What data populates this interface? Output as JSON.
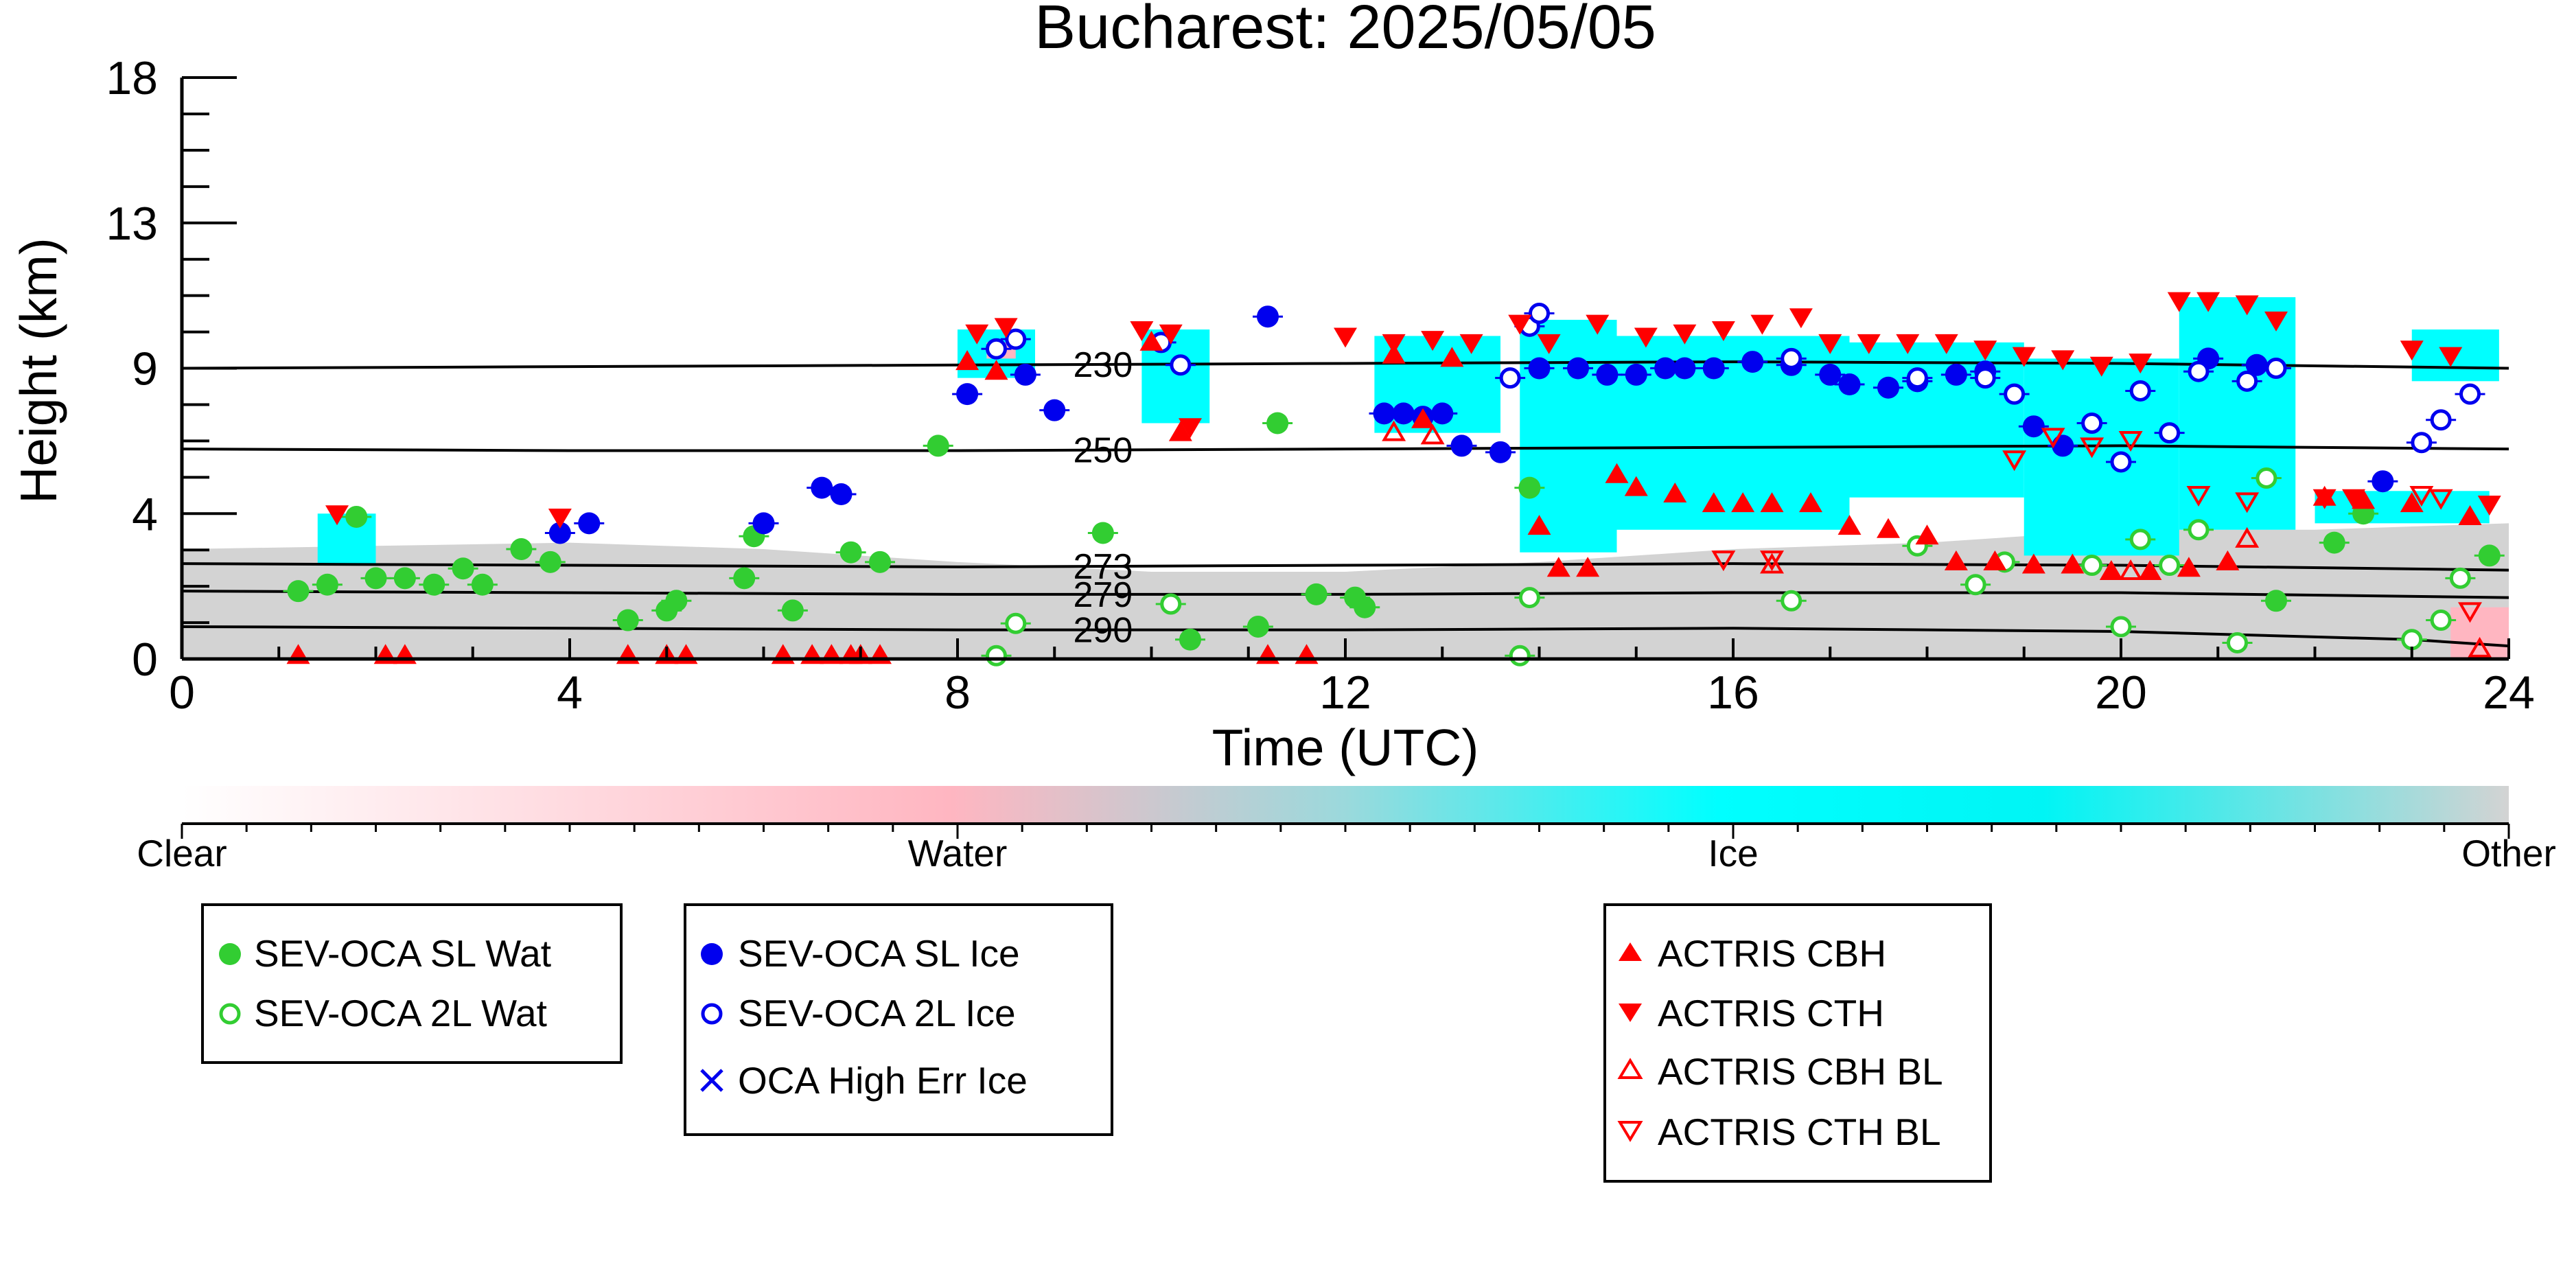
{
  "chart_data": {
    "type": "scatter",
    "title": "Bucharest: 2025/05/05",
    "xlabel": "Time (UTC)",
    "ylabel": "Height (km)",
    "xlim": [
      0,
      24
    ],
    "ylim": [
      0,
      18
    ],
    "x_ticks": [
      "0",
      "4",
      "8",
      "12",
      "16",
      "20",
      "24"
    ],
    "y_ticks": [
      "0",
      "4",
      "9",
      "13",
      "18"
    ],
    "y_tick_values": [
      0,
      4.5,
      9,
      13.5,
      18
    ],
    "colors": {
      "water_sl": "#32CD32",
      "ice_sl": "#0000EE",
      "actris": "#FF0000",
      "clear": "#ffffff",
      "water": "#FFB6C1",
      "ice": "#00FFFF",
      "other": "#D3D3D3"
    },
    "colorbar_labels": [
      "Clear",
      "Water",
      "Ice",
      "Other"
    ],
    "temperature_contours": [
      {
        "label": "230",
        "points": [
          [
            0,
            9.0
          ],
          [
            4,
            9.05
          ],
          [
            8,
            9.1
          ],
          [
            12,
            9.15
          ],
          [
            16,
            9.2
          ],
          [
            20,
            9.15
          ],
          [
            24,
            9.0
          ]
        ]
      },
      {
        "label": "250",
        "points": [
          [
            0,
            6.5
          ],
          [
            4,
            6.45
          ],
          [
            8,
            6.45
          ],
          [
            12,
            6.5
          ],
          [
            16,
            6.55
          ],
          [
            20,
            6.6
          ],
          [
            24,
            6.5
          ]
        ]
      },
      {
        "label": "273",
        "points": [
          [
            0,
            2.95
          ],
          [
            4,
            2.9
          ],
          [
            8,
            2.85
          ],
          [
            12,
            2.9
          ],
          [
            16,
            2.95
          ],
          [
            20,
            2.9
          ],
          [
            24,
            2.75
          ]
        ]
      },
      {
        "label": "279",
        "points": [
          [
            0,
            2.1
          ],
          [
            4,
            2.05
          ],
          [
            8,
            2.0
          ],
          [
            12,
            2.0
          ],
          [
            16,
            2.05
          ],
          [
            20,
            2.05
          ],
          [
            24,
            1.9
          ]
        ]
      },
      {
        "label": "290",
        "points": [
          [
            0,
            1.0
          ],
          [
            4,
            0.95
          ],
          [
            8,
            0.9
          ],
          [
            12,
            0.9
          ],
          [
            16,
            0.95
          ],
          [
            20,
            0.85
          ],
          [
            23,
            0.6
          ],
          [
            24,
            0.4
          ]
        ]
      }
    ],
    "series": [
      {
        "name": "SEV-OCA SL Wat",
        "marker": "filled-circle",
        "color": "#32CD32",
        "x": [
          1.2,
          1.5,
          1.8,
          2.0,
          2.3,
          2.6,
          2.9,
          3.1,
          3.5,
          3.8,
          4.6,
          5.0,
          5.1,
          5.8,
          5.9,
          6.3,
          6.9,
          7.2,
          7.8,
          9.5,
          10.4,
          11.1,
          11.3,
          11.7,
          12.1,
          12.2,
          13.9,
          21.6,
          22.2,
          22.5,
          23.8
        ],
        "y": [
          2.1,
          2.3,
          4.4,
          2.5,
          2.5,
          2.3,
          2.8,
          2.3,
          3.4,
          3.0,
          1.2,
          1.5,
          1.8,
          2.5,
          3.8,
          1.5,
          3.3,
          3.0,
          6.6,
          3.9,
          0.6,
          1.0,
          7.3,
          2.0,
          1.9,
          1.6,
          5.3,
          1.8,
          3.6,
          4.5,
          3.2
        ]
      },
      {
        "name": "SEV-OCA 2L Wat",
        "marker": "open-circle",
        "color": "#32CD32",
        "x": [
          8.4,
          8.6,
          10.2,
          13.8,
          13.9,
          16.6,
          17.9,
          18.5,
          18.8,
          19.7,
          20.0,
          20.2,
          20.5,
          20.8,
          21.2,
          21.5,
          23.0,
          23.3,
          23.5
        ],
        "y": [
          0.1,
          1.1,
          1.7,
          0.1,
          1.9,
          1.8,
          3.5,
          2.3,
          3.0,
          2.9,
          1.0,
          3.7,
          2.9,
          4.0,
          0.5,
          5.6,
          0.6,
          1.2,
          2.5
        ]
      },
      {
        "name": "SEV-OCA SL Ice",
        "marker": "filled-circle",
        "color": "#0000EE",
        "x": [
          3.9,
          4.2,
          6.0,
          6.6,
          6.8,
          8.1,
          8.7,
          9.0,
          11.2,
          12.4,
          12.6,
          12.8,
          13.0,
          13.2,
          13.6,
          14.0,
          14.4,
          14.7,
          15.0,
          15.3,
          15.5,
          15.8,
          16.2,
          16.6,
          17.0,
          17.2,
          17.6,
          17.9,
          18.3,
          18.6,
          19.1,
          19.4,
          20.9,
          21.4,
          22.7
        ],
        "y": [
          3.9,
          4.2,
          4.2,
          5.3,
          5.1,
          8.2,
          8.8,
          7.7,
          10.6,
          7.6,
          7.6,
          7.5,
          7.6,
          6.6,
          6.4,
          9.0,
          9.0,
          8.8,
          8.8,
          9.0,
          9.0,
          9.0,
          9.2,
          9.1,
          8.8,
          8.5,
          8.4,
          8.6,
          8.8,
          8.9,
          7.2,
          6.6,
          9.3,
          9.1,
          5.5
        ]
      },
      {
        "name": "SEV-OCA 2L Ice",
        "marker": "open-circle",
        "color": "#0000EE",
        "x": [
          8.4,
          8.6,
          10.1,
          10.3,
          13.7,
          13.9,
          14.0,
          16.6,
          17.9,
          18.6,
          18.9,
          19.7,
          20.0,
          20.2,
          20.5,
          20.8,
          21.3,
          21.6,
          23.1,
          23.3,
          23.6
        ],
        "y": [
          9.6,
          9.9,
          9.8,
          9.1,
          8.7,
          10.3,
          10.7,
          9.3,
          8.7,
          8.7,
          8.2,
          7.3,
          6.1,
          8.3,
          7.0,
          8.9,
          8.6,
          9.0,
          6.7,
          7.4,
          8.2
        ]
      },
      {
        "name": "OCA High Err Ice",
        "marker": "cross",
        "color": "#0000EE",
        "x": [],
        "y": []
      },
      {
        "name": "ACTRIS CBH",
        "marker": "triangle-up",
        "color": "#FF0000",
        "x": [
          1.2,
          2.1,
          2.3,
          4.6,
          5.0,
          5.2,
          6.2,
          6.5,
          6.7,
          6.9,
          7.0,
          7.2,
          8.1,
          8.4,
          10.0,
          10.3,
          11.2,
          11.6,
          12.5,
          12.8,
          13.1,
          14.0,
          14.2,
          14.5,
          14.8,
          15.0,
          15.4,
          15.8,
          16.1,
          16.4,
          16.8,
          17.2,
          17.6,
          18.0,
          18.3,
          18.7,
          19.1,
          19.5,
          19.9,
          20.3,
          20.7,
          21.1,
          22.1,
          22.5,
          23.0,
          23.6
        ],
        "y": [
          0.1,
          0.1,
          0.1,
          0.1,
          0.1,
          0.1,
          0.1,
          0.1,
          0.1,
          0.1,
          0.1,
          0.1,
          9.2,
          8.9,
          9.8,
          7.0,
          0.1,
          0.1,
          9.4,
          7.4,
          9.3,
          4.1,
          2.8,
          2.8,
          5.7,
          5.3,
          5.1,
          4.8,
          4.8,
          4.8,
          4.8,
          4.1,
          4.0,
          3.8,
          3.0,
          3.0,
          2.9,
          2.9,
          2.7,
          2.7,
          2.8,
          3.0,
          5.0,
          4.9,
          4.8,
          4.4
        ]
      },
      {
        "name": "ACTRIS CTH",
        "marker": "triangle-down",
        "color": "#FF0000",
        "x": [
          1.6,
          3.9,
          8.2,
          8.5,
          9.9,
          10.2,
          10.4,
          12.0,
          12.5,
          12.9,
          13.3,
          13.8,
          14.1,
          14.6,
          15.1,
          15.5,
          15.9,
          16.3,
          16.7,
          17.0,
          17.4,
          17.8,
          18.2,
          18.6,
          19.0,
          19.4,
          19.8,
          20.2,
          20.6,
          20.9,
          21.3,
          21.6,
          22.1,
          22.4,
          23.0,
          23.4,
          23.8
        ],
        "y": [
          4.5,
          4.4,
          10.1,
          10.3,
          10.2,
          10.1,
          7.2,
          10.0,
          9.8,
          9.9,
          9.8,
          10.4,
          9.8,
          10.4,
          10.0,
          10.1,
          10.2,
          10.4,
          10.6,
          9.8,
          9.8,
          9.8,
          9.8,
          9.6,
          9.4,
          9.3,
          9.1,
          9.2,
          11.1,
          11.1,
          11.0,
          10.5,
          5.0,
          5.0,
          9.6,
          9.4,
          4.8
        ]
      },
      {
        "name": "ACTRIS CBH BL",
        "marker": "open-triangle-up",
        "color": "#FF0000",
        "x": [
          12.5,
          12.9,
          16.4,
          20.1,
          21.3,
          23.7
        ],
        "y": [
          7.0,
          6.9,
          2.9,
          2.7,
          3.7,
          0.3
        ]
      },
      {
        "name": "ACTRIS CTH BL",
        "marker": "open-triangle-down",
        "color": "#FF0000",
        "x": [
          15.9,
          16.4,
          18.9,
          19.3,
          19.7,
          20.1,
          20.8,
          21.3,
          23.1,
          23.3,
          23.6
        ],
        "y": [
          3.1,
          3.1,
          6.2,
          6.9,
          6.6,
          6.8,
          5.1,
          4.9,
          5.1,
          5.0,
          1.5
        ]
      }
    ]
  },
  "legends": [
    {
      "entries": [
        "SEV-OCA SL Wat",
        "SEV-OCA 2L Wat"
      ]
    },
    {
      "entries": [
        "SEV-OCA SL Ice",
        "SEV-OCA 2L Ice",
        "OCA High Err Ice"
      ]
    },
    {
      "entries": [
        "ACTRIS CBH",
        "ACTRIS CTH",
        "ACTRIS CBH BL",
        "ACTRIS CTH BL"
      ]
    }
  ]
}
